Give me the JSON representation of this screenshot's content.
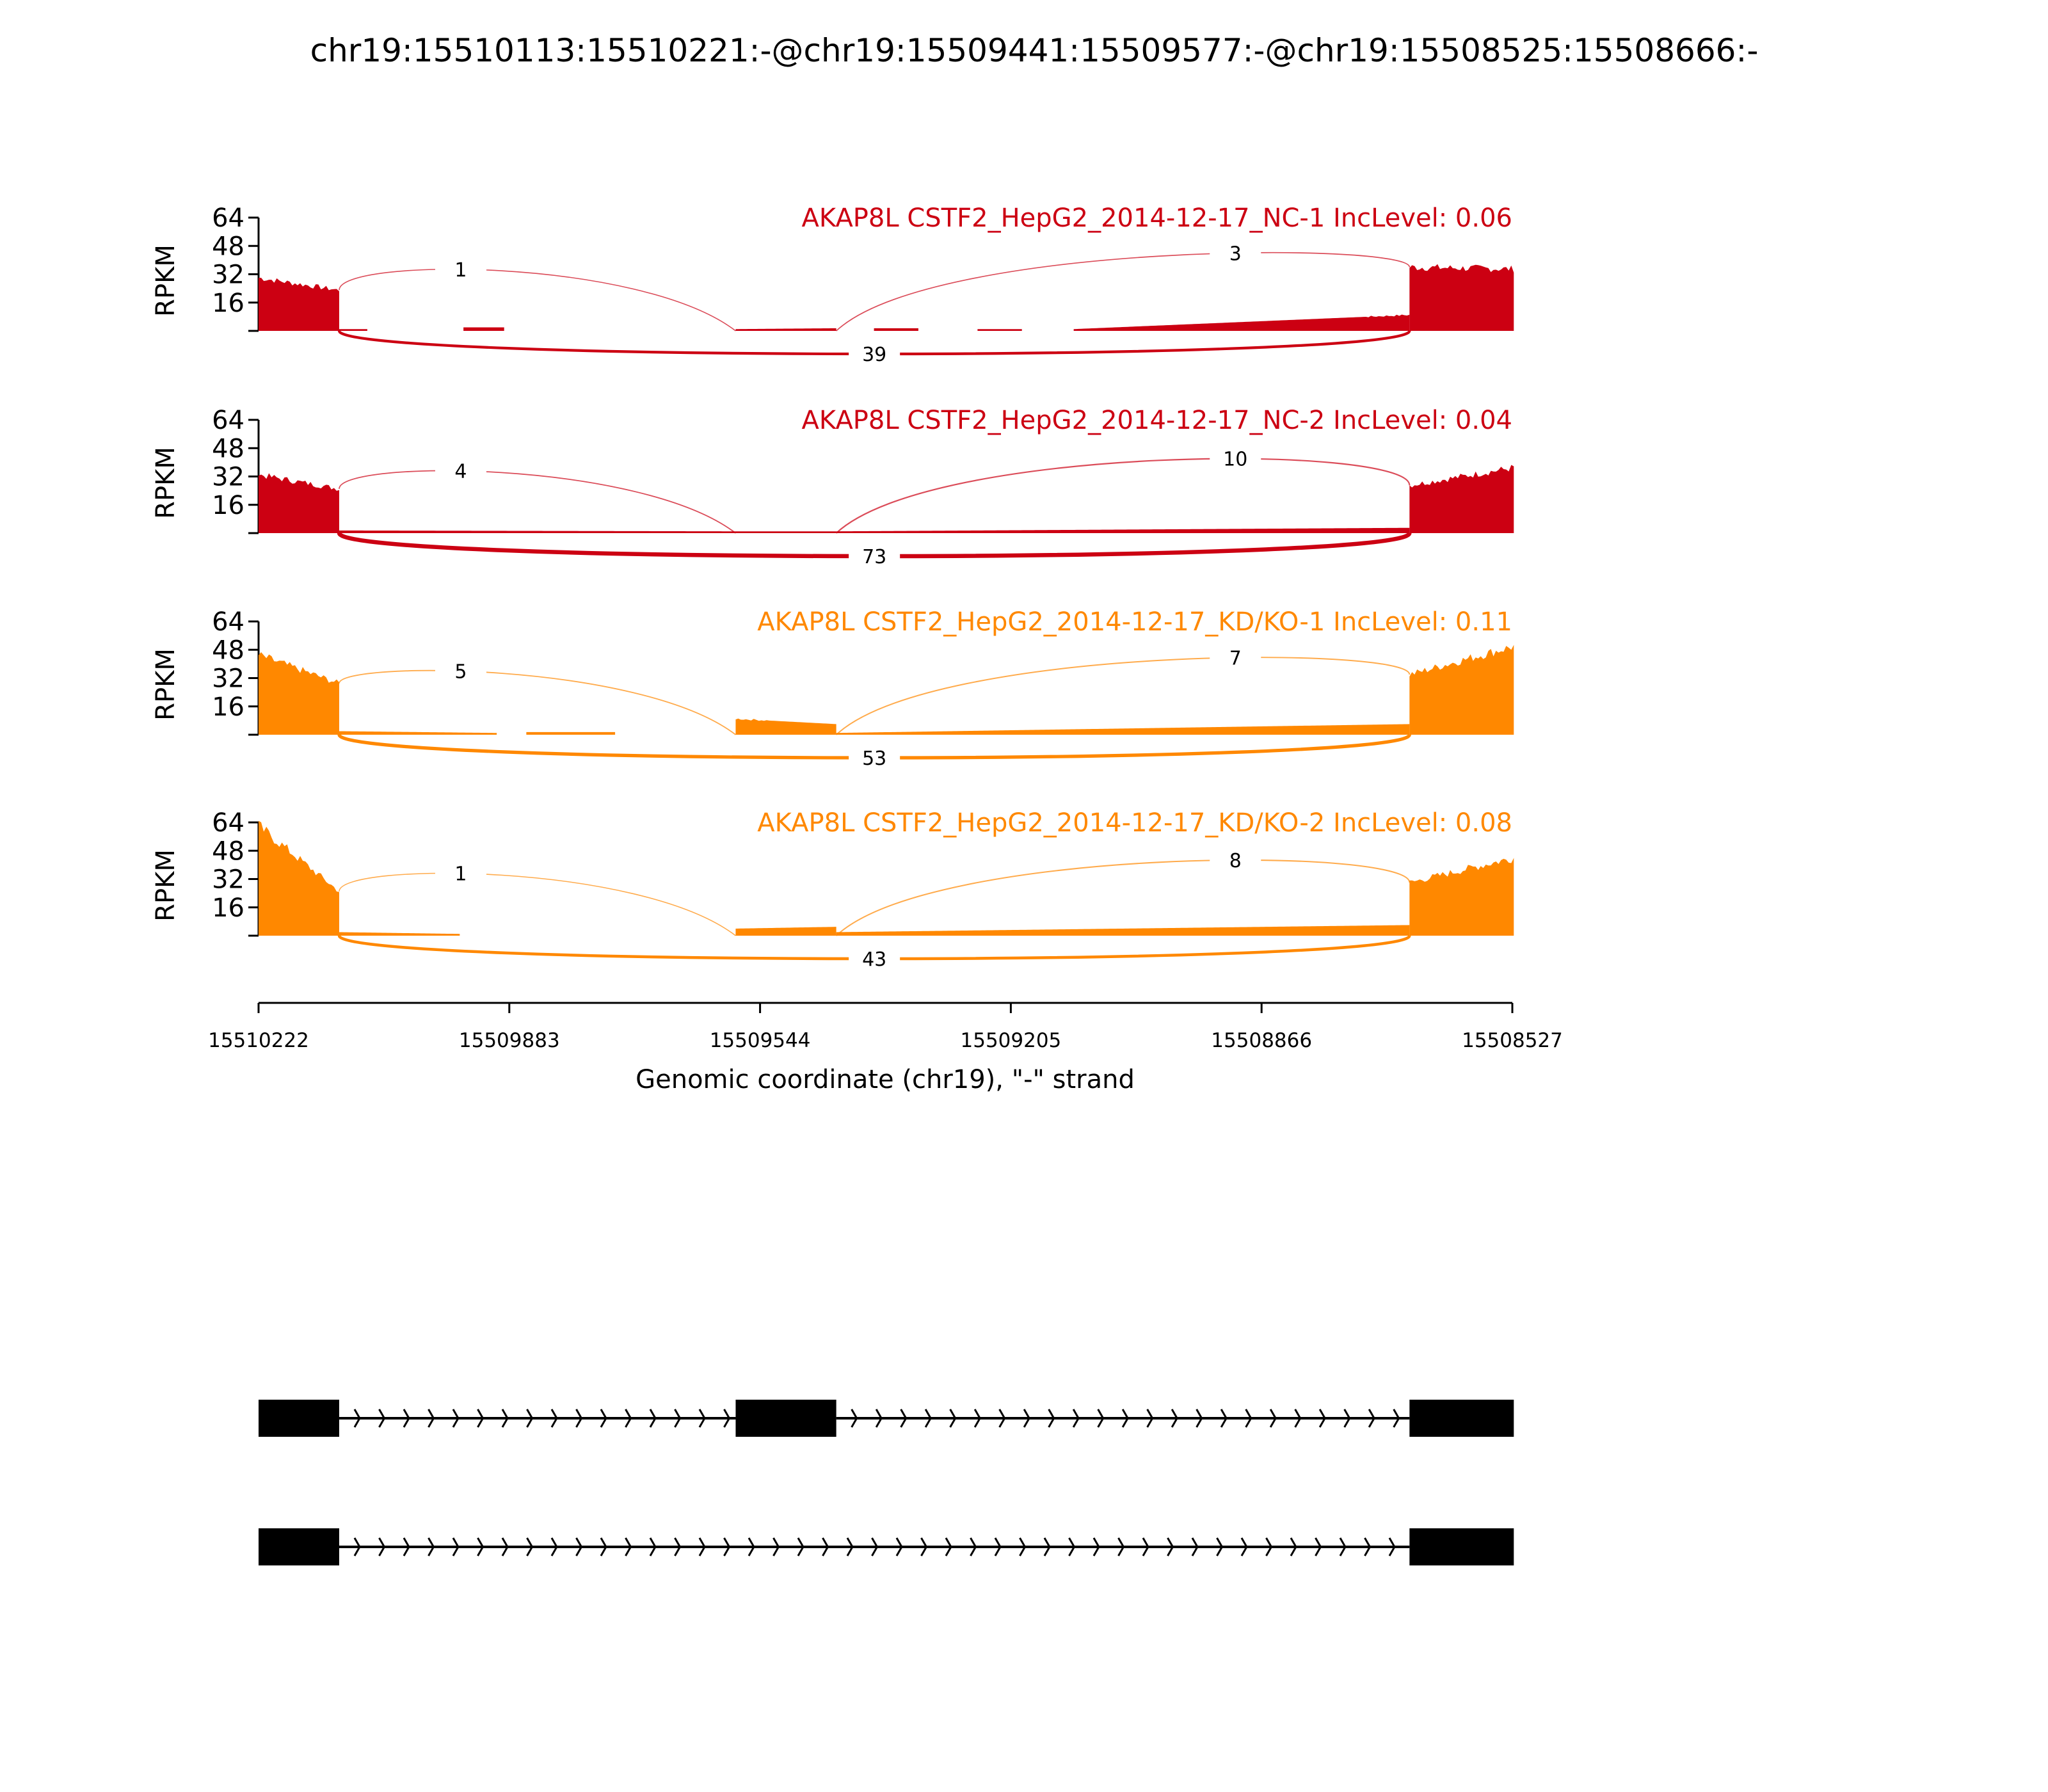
{
  "chart_data": {
    "type": "area",
    "title": "chr19:15510113:15510221:-@chr19:15509441:15509577:-@chr19:15508525:15508666:-",
    "xlabel": "Genomic coordinate (chr19), \"-\" strand",
    "ylabel": "RPKM",
    "xlim": [
      15510222,
      15508527
    ],
    "ylim": [
      0,
      64
    ],
    "yticks": [
      "16",
      "32",
      "48",
      "64"
    ],
    "xticks": [
      "15510222",
      "15509883",
      "15509544",
      "15509205",
      "15508866",
      "15508527"
    ],
    "exons": [
      [
        15510222,
        15510113
      ],
      [
        15509577,
        15509441
      ],
      [
        15508666,
        15508525
      ]
    ],
    "samples": [
      {
        "label": "AKAP8L CSTF2_HepG2_2014-12-17_NC-1 IncLevel: 0.06",
        "color": "#cc0012",
        "coverage": [
          [
            15510222,
            15510113,
            30,
            23
          ],
          [
            15510113,
            15510075,
            1,
            1
          ],
          [
            15509945,
            15509890,
            2,
            2
          ],
          [
            15509577,
            15509441,
            1,
            1.5
          ],
          [
            15509390,
            15509330,
            1.5,
            1.5
          ],
          [
            15509250,
            15509190,
            1,
            1
          ],
          [
            15509120,
            15508666,
            1,
            9
          ],
          [
            15508666,
            15508525,
            36,
            35
          ]
        ],
        "junctions": {
          "inc1": "1",
          "inc2": "3",
          "skip": "39"
        }
      },
      {
        "label": "AKAP8L CSTF2_HepG2_2014-12-17_NC-2 IncLevel: 0.04",
        "color": "#cc0012",
        "coverage": [
          [
            15510222,
            15510113,
            33,
            25
          ],
          [
            15510113,
            15509577,
            1.5,
            1
          ],
          [
            15509577,
            15509441,
            1,
            1
          ],
          [
            15509441,
            15508666,
            1,
            3
          ],
          [
            15508666,
            15508525,
            27,
            37
          ]
        ],
        "junctions": {
          "inc1": "4",
          "inc2": "10",
          "skip": "73"
        }
      },
      {
        "label": "AKAP8L CSTF2_HepG2_2014-12-17_KD/KO-1 IncLevel: 0.11",
        "color": "#ff8800",
        "coverage": [
          [
            15510222,
            15510113,
            45,
            29
          ],
          [
            15510113,
            15509900,
            2,
            1
          ],
          [
            15509860,
            15509740,
            1.5,
            1.5
          ],
          [
            15509577,
            15509441,
            9,
            6
          ],
          [
            15509441,
            15508666,
            1,
            6
          ],
          [
            15508666,
            15508525,
            34,
            50
          ]
        ],
        "junctions": {
          "inc1": "5",
          "inc2": "7",
          "skip": "53"
        }
      },
      {
        "label": "AKAP8L CSTF2_HepG2_2014-12-17_KD/KO-2 IncLevel: 0.08",
        "color": "#ff8800",
        "coverage": [
          [
            15510222,
            15510113,
            62,
            25
          ],
          [
            15510113,
            15509950,
            2,
            1
          ],
          [
            15509577,
            15509441,
            4,
            5
          ],
          [
            15509441,
            15508666,
            2,
            6
          ],
          [
            15508666,
            15508525,
            30,
            44
          ]
        ],
        "junctions": {
          "inc1": "1",
          "inc2": "8",
          "skip": "43"
        }
      }
    ],
    "isoforms": [
      {
        "exons": [
          0,
          1,
          2
        ]
      },
      {
        "exons": [
          0,
          2
        ]
      }
    ]
  }
}
